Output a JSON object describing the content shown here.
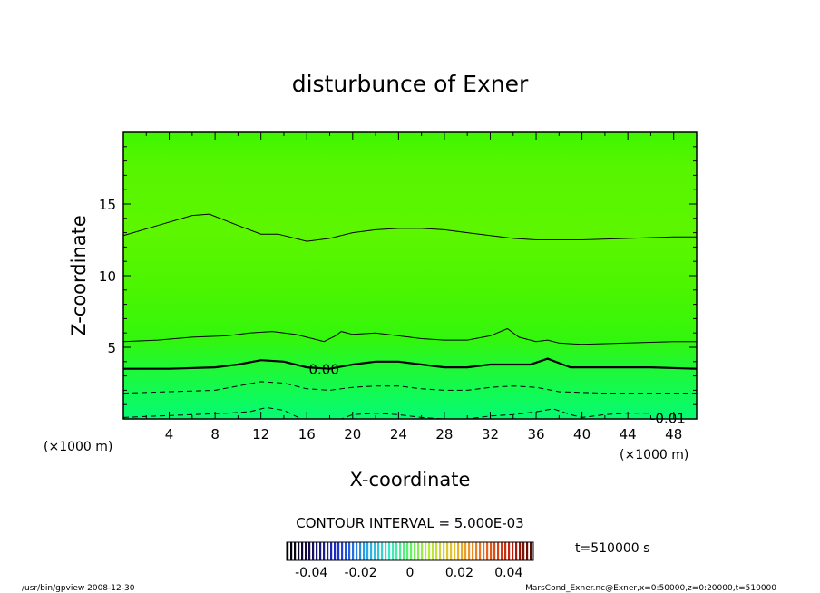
{
  "chart_data": {
    "type": "heatmap",
    "title": "disturbunce of Exner",
    "xlabel": "X-coordinate",
    "ylabel": "Z-coordinate",
    "x_unit": "(×1000 m)",
    "y_unit": "(×1000 m)",
    "xlim": [
      0,
      50
    ],
    "ylim": [
      0,
      20
    ],
    "x_ticks": [
      "4",
      "8",
      "12",
      "16",
      "20",
      "24",
      "28",
      "32",
      "36",
      "40",
      "44",
      "48"
    ],
    "y_ticks": [
      "5",
      "10",
      "15"
    ],
    "contour_interval_label": "CONTOUR INTERVAL = 5.000E-03",
    "time_label": "t=510000 s",
    "colorbar_ticks": [
      "-0.04",
      "-0.02",
      "0",
      "0.02",
      "0.04"
    ],
    "colorbar_range": [
      -0.05,
      0.05
    ],
    "contour_labels": [
      {
        "text": "0.00",
        "x": 17.5,
        "y": 3.5
      },
      {
        "text": "-0.01",
        "x": 47.5,
        "y": 0.1
      }
    ],
    "contours": [
      {
        "level": 0.01,
        "style": "solid",
        "points": [
          [
            0,
            12.8
          ],
          [
            3,
            13.5
          ],
          [
            6,
            14.2
          ],
          [
            7.5,
            14.3
          ],
          [
            10,
            13.5
          ],
          [
            12,
            12.9
          ],
          [
            13.5,
            12.9
          ],
          [
            15,
            12.6
          ],
          [
            16,
            12.4
          ],
          [
            18,
            12.6
          ],
          [
            20,
            13.0
          ],
          [
            22,
            13.2
          ],
          [
            24,
            13.3
          ],
          [
            26,
            13.3
          ],
          [
            28,
            13.2
          ],
          [
            30,
            13.0
          ],
          [
            32,
            12.8
          ],
          [
            34,
            12.6
          ],
          [
            36,
            12.5
          ],
          [
            40,
            12.5
          ],
          [
            44,
            12.6
          ],
          [
            48,
            12.7
          ],
          [
            50,
            12.7
          ]
        ]
      },
      {
        "level": 0.005,
        "style": "solid",
        "points": [
          [
            0,
            5.4
          ],
          [
            3,
            5.5
          ],
          [
            6,
            5.7
          ],
          [
            9,
            5.8
          ],
          [
            11,
            6.0
          ],
          [
            13,
            6.1
          ],
          [
            15,
            5.9
          ],
          [
            16.5,
            5.6
          ],
          [
            17.5,
            5.4
          ],
          [
            18.5,
            5.8
          ],
          [
            19,
            6.1
          ],
          [
            20,
            5.9
          ],
          [
            22,
            6.0
          ],
          [
            24,
            5.8
          ],
          [
            26,
            5.6
          ],
          [
            28,
            5.5
          ],
          [
            30,
            5.5
          ],
          [
            32,
            5.8
          ],
          [
            33.5,
            6.3
          ],
          [
            34.5,
            5.7
          ],
          [
            36,
            5.4
          ],
          [
            37,
            5.5
          ],
          [
            38,
            5.3
          ],
          [
            40,
            5.2
          ],
          [
            44,
            5.3
          ],
          [
            48,
            5.4
          ],
          [
            50,
            5.4
          ]
        ]
      },
      {
        "level": 0.0,
        "style": "bold",
        "points": [
          [
            0,
            3.5
          ],
          [
            4,
            3.5
          ],
          [
            8,
            3.6
          ],
          [
            10,
            3.8
          ],
          [
            12,
            4.1
          ],
          [
            14,
            4.0
          ],
          [
            16,
            3.6
          ],
          [
            18,
            3.5
          ],
          [
            20,
            3.8
          ],
          [
            22,
            4.0
          ],
          [
            24,
            4.0
          ],
          [
            26,
            3.8
          ],
          [
            28,
            3.6
          ],
          [
            30,
            3.6
          ],
          [
            32,
            3.8
          ],
          [
            34,
            3.8
          ],
          [
            35.5,
            3.8
          ],
          [
            37,
            4.2
          ],
          [
            38,
            3.9
          ],
          [
            39,
            3.6
          ],
          [
            42,
            3.6
          ],
          [
            46,
            3.6
          ],
          [
            50,
            3.5
          ]
        ]
      },
      {
        "level": -0.005,
        "style": "dashed",
        "points": [
          [
            0,
            1.8
          ],
          [
            4,
            1.9
          ],
          [
            8,
            2.0
          ],
          [
            10,
            2.3
          ],
          [
            12,
            2.6
          ],
          [
            14,
            2.5
          ],
          [
            16,
            2.1
          ],
          [
            18,
            2.0
          ],
          [
            20,
            2.2
          ],
          [
            22,
            2.3
          ],
          [
            24,
            2.3
          ],
          [
            26,
            2.1
          ],
          [
            28,
            2.0
          ],
          [
            30,
            2.0
          ],
          [
            32,
            2.2
          ],
          [
            34,
            2.3
          ],
          [
            36,
            2.2
          ],
          [
            38,
            1.9
          ],
          [
            42,
            1.8
          ],
          [
            46,
            1.8
          ],
          [
            50,
            1.8
          ]
        ]
      },
      {
        "level": -0.01,
        "style": "dashed",
        "points": [
          [
            0,
            0.1
          ],
          [
            3,
            0.2
          ],
          [
            6,
            0.3
          ],
          [
            9,
            0.4
          ],
          [
            11,
            0.5
          ],
          [
            12.5,
            0.8
          ],
          [
            14,
            0.6
          ],
          [
            15.5,
            0.0
          ],
          [
            19,
            0.0
          ],
          [
            20,
            0.3
          ],
          [
            22,
            0.4
          ],
          [
            24,
            0.3
          ],
          [
            26,
            0.1
          ],
          [
            28,
            0.0
          ],
          [
            30,
            0.0
          ],
          [
            32,
            0.2
          ],
          [
            34,
            0.3
          ],
          [
            36,
            0.5
          ],
          [
            37.5,
            0.7
          ],
          [
            39,
            0.3
          ],
          [
            40,
            0.1
          ],
          [
            42,
            0.3
          ],
          [
            44,
            0.4
          ],
          [
            46,
            0.4
          ]
        ]
      }
    ]
  },
  "footer": {
    "left": "/usr/bin/gpview  2008-12-30",
    "right": "MarsCond_Exner.nc@Exner,x=0:50000,z=0:20000,t=510000"
  },
  "colors": {
    "background": "#ffffff",
    "field_top": "#5ef500",
    "field_mid": "#3df700",
    "field_zero": "#2ef511",
    "field_bottom": "#0cfb6d"
  }
}
